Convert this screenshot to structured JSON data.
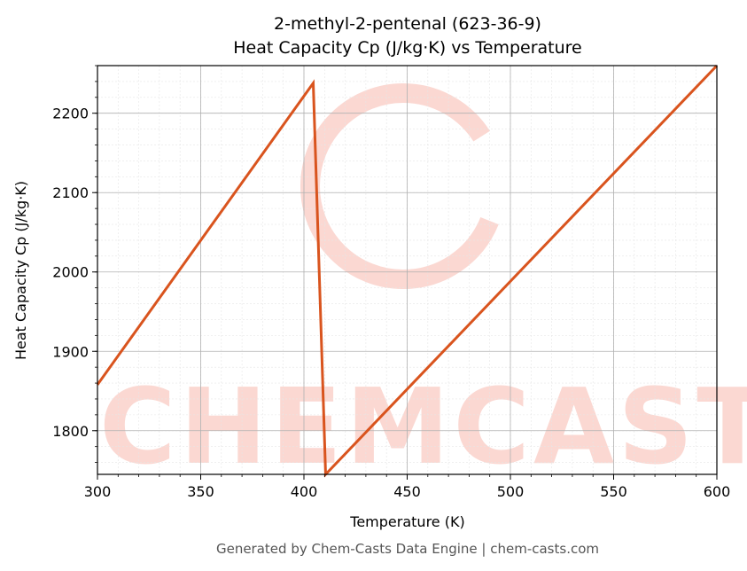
{
  "chart_data": {
    "type": "line",
    "title": "2-methyl-2-pentenal (623-36-9)",
    "subtitle": "Heat Capacity Cp (J/kg·K) vs Temperature",
    "xlabel": "Temperature (K)",
    "ylabel": "Heat Capacity Cp (J/kg·K)",
    "xlim": [
      300,
      600
    ],
    "ylim": [
      1745,
      2260
    ],
    "xticks": [
      300,
      350,
      400,
      450,
      500,
      550,
      600
    ],
    "yticks": [
      1800,
      1900,
      2000,
      2100,
      2200
    ],
    "grid": true,
    "line_color": "#d9541e",
    "series": [
      {
        "points": [
          {
            "x": 300,
            "y": 1858
          },
          {
            "x": 404.5,
            "y": 2238
          },
          {
            "x": 410.5,
            "y": 1745
          },
          {
            "x": 600,
            "y": 2260
          }
        ]
      }
    ]
  },
  "watermark": {
    "text": "CHEMCASTS"
  },
  "footer": "Generated by Chem-Casts Data Engine | chem-casts.com"
}
